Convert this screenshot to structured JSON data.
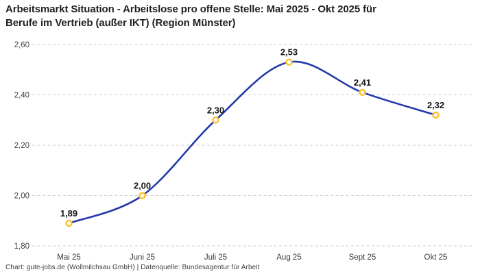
{
  "title": {
    "line1": "Arbeitsmarkt Situation - Arbeitslose pro offene Stelle: Mai 2025 - Okt 2025 für",
    "line2": "Berufe im Vertrieb (außer IKT) (Region Münster)"
  },
  "footer": {
    "text": "Chart: gute-jobs.de (Wollmilchsau GmbH) | Datenquelle: Bundesagentur für Arbeit"
  },
  "chart_data": {
    "type": "line",
    "title": "Arbeitsmarkt Situation - Arbeitslose pro offene Stelle: Mai 2025 - Okt 2025 für Berufe im Vertrieb (außer IKT) (Region Münster)",
    "categories": [
      "Mai 25",
      "Juni 25",
      "Juli 25",
      "Aug 25",
      "Sept 25",
      "Okt 25"
    ],
    "values": [
      1.89,
      2.0,
      2.3,
      2.53,
      2.41,
      2.32
    ],
    "data_labels": [
      "1,89",
      "2,00",
      "2,30",
      "2,53",
      "2,41",
      "2,32"
    ],
    "xlabel": "",
    "ylabel": "",
    "ylim": [
      1.8,
      2.6
    ],
    "yticks": [
      {
        "value": 2.6,
        "label": "2,60"
      },
      {
        "value": 2.4,
        "label": "2,40"
      },
      {
        "value": 2.2,
        "label": "2,20"
      },
      {
        "value": 2.0,
        "label": "2,00"
      },
      {
        "value": 1.8,
        "label": "1,80"
      }
    ],
    "grid": "horizontal-dashed",
    "legend": "none",
    "smooth": true,
    "colors": {
      "line": "#2239a8",
      "marker_ring": "#fcc233",
      "marker_fill": "#ffffff",
      "gridline": "#cbcbcb",
      "title_text": "#1f1f1f",
      "axis_text": "#3f3f3f",
      "data_label_text": "#141414",
      "background": "#ffffff"
    }
  }
}
